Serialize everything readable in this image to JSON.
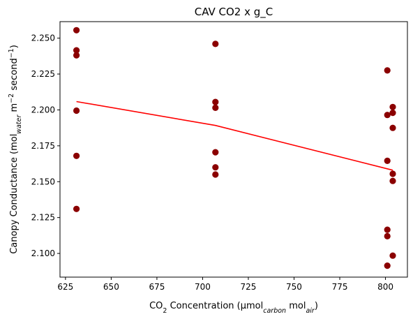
{
  "chart_data": {
    "type": "scatter",
    "title": "CAV CO2 x g_C",
    "xlabel": {
      "parts": [
        {
          "text": "CO",
          "shift": "normal"
        },
        {
          "text": "2",
          "shift": "sub"
        },
        {
          "text": " Concentration (µmol",
          "shift": "normal"
        },
        {
          "text": "carbon",
          "shift": "sub-italic"
        },
        {
          "text": " mol",
          "shift": "normal"
        },
        {
          "text": "air",
          "shift": "sub-italic"
        },
        {
          "text": ")",
          "shift": "normal"
        }
      ]
    },
    "ylabel": {
      "parts": [
        {
          "text": "Canopy Conductance (mol",
          "shift": "normal"
        },
        {
          "text": "water",
          "shift": "sub-italic"
        },
        {
          "text": " m",
          "shift": "normal"
        },
        {
          "text": "−2",
          "shift": "super"
        },
        {
          "text": " second",
          "shift": "normal"
        },
        {
          "text": "−1",
          "shift": "super"
        },
        {
          "text": ")",
          "shift": "normal"
        }
      ]
    },
    "xlim": [
      622,
      812
    ],
    "ylim": [
      2.0835,
      2.2615
    ],
    "xticks": [
      625,
      650,
      675,
      700,
      725,
      750,
      775,
      800
    ],
    "xtick_labels": [
      "625",
      "650",
      "675",
      "700",
      "725",
      "750",
      "775",
      "800"
    ],
    "yticks": [
      2.1,
      2.125,
      2.15,
      2.175,
      2.2,
      2.225,
      2.25
    ],
    "ytick_labels": [
      "2.100",
      "2.125",
      "2.150",
      "2.175",
      "2.200",
      "2.225",
      "2.250"
    ],
    "grid": false,
    "legend": "none",
    "series": [
      {
        "kind": "scatter",
        "color": "#8b0000",
        "points": [
          {
            "x": 631,
            "y": 2.2555
          },
          {
            "x": 631,
            "y": 2.2415
          },
          {
            "x": 631,
            "y": 2.238
          },
          {
            "x": 631,
            "y": 2.1995
          },
          {
            "x": 631,
            "y": 2.168
          },
          {
            "x": 631,
            "y": 2.131
          },
          {
            "x": 707,
            "y": 2.246
          },
          {
            "x": 707,
            "y": 2.2055
          },
          {
            "x": 707,
            "y": 2.2015
          },
          {
            "x": 707,
            "y": 2.1705
          },
          {
            "x": 707,
            "y": 2.16
          },
          {
            "x": 707,
            "y": 2.155
          },
          {
            "x": 801,
            "y": 2.2275
          },
          {
            "x": 801,
            "y": 2.1965
          },
          {
            "x": 801,
            "y": 2.1645
          },
          {
            "x": 801,
            "y": 2.1165
          },
          {
            "x": 801,
            "y": 2.112
          },
          {
            "x": 801,
            "y": 2.0915
          },
          {
            "x": 804,
            "y": 2.202
          },
          {
            "x": 804,
            "y": 2.198
          },
          {
            "x": 804,
            "y": 2.1875
          },
          {
            "x": 804,
            "y": 2.1555
          },
          {
            "x": 804,
            "y": 2.1505
          },
          {
            "x": 804,
            "y": 2.0985
          }
        ]
      },
      {
        "kind": "line",
        "color": "#ff0000",
        "points": [
          {
            "x": 631,
            "y": 2.2058
          },
          {
            "x": 707,
            "y": 2.1892
          },
          {
            "x": 804,
            "y": 2.158
          }
        ]
      }
    ]
  }
}
